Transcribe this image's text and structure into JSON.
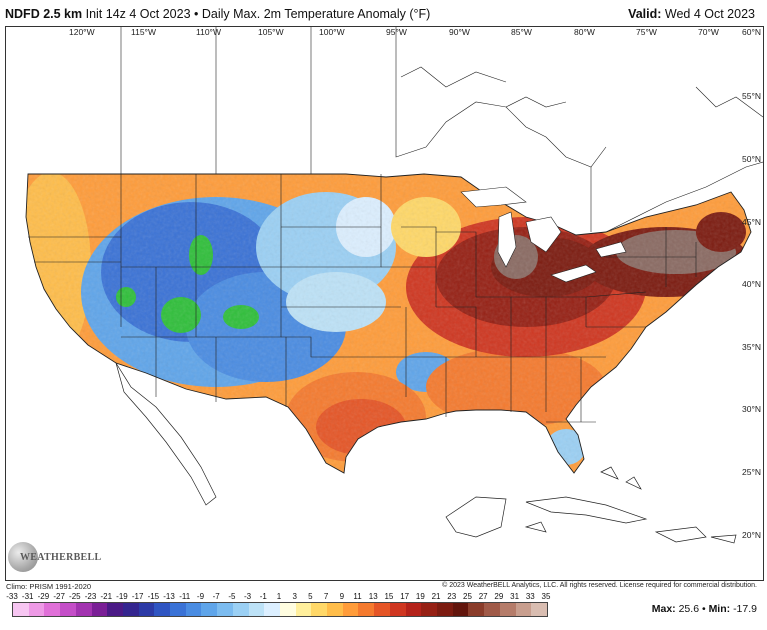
{
  "header": {
    "model": "NDFD 2.5 km",
    "init": "Init 14z 4 Oct 2023",
    "separator": "•",
    "field": "Daily Max. 2m Temperature Anomaly (°F)",
    "valid_label": "Valid:",
    "valid_date": "Wed 4 Oct 2023"
  },
  "map": {
    "longitudes": [
      "120°W",
      "115°W",
      "110°W",
      "105°W",
      "100°W",
      "95°W",
      "90°W",
      "85°W",
      "80°W",
      "75°W",
      "70°W"
    ],
    "latitudes": [
      "60°N",
      "55°N",
      "50°N",
      "45°N",
      "40°N",
      "35°N",
      "30°N",
      "25°N",
      "20°N"
    ],
    "colors": {
      "ocean": "#ffffff",
      "coast": "#222222",
      "warm_peak": "#7a1208",
      "cool_core": "#2b6fd6",
      "green": "#2fbf3a",
      "brown": "#8a6a62"
    }
  },
  "logo": {
    "text": "WEATHERBELL"
  },
  "footer": {
    "climo": "Climo: PRISM 1991-2020",
    "copyright": "© 2023 WeatherBELL Analytics, LLC. All rights reserved. License required for commercial distribution."
  },
  "colorbar": {
    "labels": [
      "-33",
      "-31",
      "-29",
      "-27",
      "-25",
      "-23",
      "-21",
      "-19",
      "-17",
      "-15",
      "-13",
      "-11",
      "-9",
      "-7",
      "-5",
      "-3",
      "-1",
      "1",
      "3",
      "5",
      "7",
      "9",
      "11",
      "13",
      "15",
      "17",
      "19",
      "21",
      "23",
      "25",
      "27",
      "29",
      "31",
      "33",
      "35"
    ],
    "colors": [
      "#f7c6f2",
      "#ee9ae6",
      "#e070d8",
      "#c44ec8",
      "#a233b0",
      "#7a1f96",
      "#4b1a86",
      "#34258f",
      "#2c3aa6",
      "#2f55c2",
      "#3a72d6",
      "#4a8ce2",
      "#5fa5ea",
      "#7cbcf0",
      "#9bd0f4",
      "#bde2f7",
      "#dcefff",
      "#fffde0",
      "#ffef9c",
      "#ffd868",
      "#ffbd4a",
      "#ff9c3a",
      "#f57a2e",
      "#e55526",
      "#cf3620",
      "#b4221a",
      "#962014",
      "#7c1b10",
      "#62150c",
      "#8a3c2a",
      "#a05a48",
      "#b57c6a",
      "#c89e8e",
      "#d9bdb1"
    ]
  },
  "stats": {
    "max_label": "Max:",
    "max_value": "25.6",
    "separator": "•",
    "min_label": "Min:",
    "min_value": "-17.9"
  }
}
